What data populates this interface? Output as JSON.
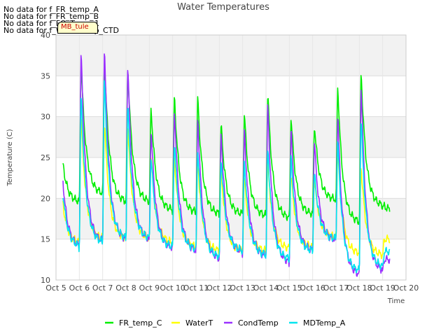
{
  "nodata_messages": [
    "No data for f_FR_temp_A",
    "No data for f_FR_temp_B",
    "No data for f_FO_Temp_1",
    "No data for f_WaterTemp_CTD"
  ],
  "tooltip_label": "MB_tule",
  "chart_data": {
    "type": "line",
    "title": "Water Temperatures",
    "xlabel": "Time",
    "ylabel": "Temperature (C)",
    "x_ticks": [
      "Oct 5",
      "Oct 6",
      "Oct 7",
      "Oct 8",
      "Oct 9",
      "Oct 10",
      "Oct 11",
      "Oct 12",
      "Oct 13",
      "Oct 14",
      "Oct 15",
      "Oct 16",
      "Oct 17",
      "Oct 18",
      "Oct 19",
      "Oct 20"
    ],
    "xlim": [
      5,
      20
    ],
    "ylim": [
      10,
      40
    ],
    "y_ticks": [
      10,
      15,
      20,
      25,
      30,
      35,
      40
    ],
    "grid": true,
    "legend_position": "bottom",
    "days": [
      5,
      6,
      7,
      8,
      9,
      10,
      11,
      12,
      13,
      14,
      15,
      16,
      17,
      18,
      19
    ],
    "series": [
      {
        "name": "FR_temp_C",
        "color": "#00ee00",
        "data_start_day": 5.3,
        "data_end_day": 19.3,
        "daily_min": [
          19.5,
          20.5,
          19.5,
          19.5,
          18.5,
          18.2,
          18.0,
          18.0,
          17.8,
          17.5,
          18.0,
          19.8,
          17.0,
          19.0,
          18.5
        ],
        "daily_max": [
          33.0,
          36.5,
          37.0,
          36.0,
          31.0,
          32.5,
          32.3,
          29.0,
          30.3,
          33.0,
          30.0,
          29.0,
          33.7,
          35.5,
          19.0
        ]
      },
      {
        "name": "WaterT",
        "color": "#ffff00",
        "data_start_day": 5.3,
        "data_end_day": 19.3,
        "daily_min": [
          14.5,
          15.0,
          15.0,
          15.0,
          14.5,
          14.0,
          13.5,
          13.5,
          13.5,
          13.8,
          14.0,
          15.2,
          13.2,
          13.0,
          15.0
        ],
        "daily_max": [
          28.5,
          30.0,
          29.5,
          29.0,
          25.5,
          25.0,
          24.5,
          23.5,
          22.5,
          24.5,
          23.0,
          22.5,
          26.0,
          24.0,
          15.0
        ]
      },
      {
        "name": "CondTemp",
        "color": "#9b30ff",
        "data_start_day": 5.3,
        "data_end_day": 19.3,
        "daily_min": [
          14.0,
          14.5,
          14.8,
          14.8,
          13.8,
          13.5,
          12.5,
          13.3,
          12.8,
          12.0,
          13.5,
          14.8,
          10.5,
          11.0,
          12.5
        ],
        "daily_max": [
          37.5,
          38.0,
          38.3,
          36.5,
          28.5,
          31.0,
          30.0,
          28.0,
          28.5,
          31.5,
          28.5,
          27.0,
          30.5,
          34.0,
          12.5
        ]
      },
      {
        "name": "MDTemp_A",
        "color": "#00e5ee",
        "data_start_day": 5.3,
        "data_end_day": 19.3,
        "daily_min": [
          14.0,
          14.5,
          15.0,
          15.0,
          14.0,
          13.7,
          12.8,
          13.5,
          13.0,
          12.5,
          13.5,
          15.0,
          11.0,
          11.5,
          13.5
        ],
        "daily_max": [
          33.0,
          32.5,
          34.5,
          31.5,
          25.0,
          27.0,
          26.0,
          25.0,
          24.5,
          26.0,
          25.0,
          23.0,
          27.0,
          30.0,
          13.5
        ]
      }
    ]
  }
}
